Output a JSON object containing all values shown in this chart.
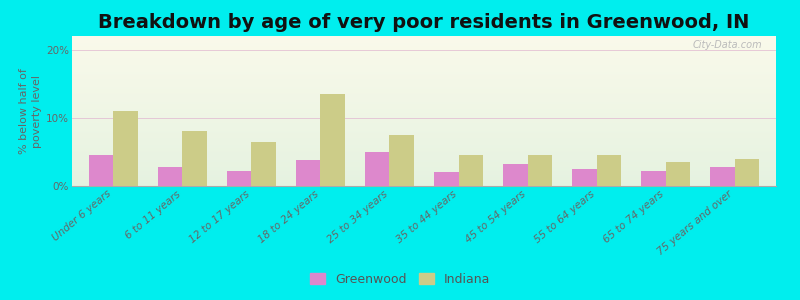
{
  "title": "Breakdown by age of very poor residents in Greenwood, IN",
  "ylabel": "% below half of\npoverty level",
  "categories": [
    "Under 6 years",
    "6 to 11 years",
    "12 to 17 years",
    "18 to 24 years",
    "25 to 34 years",
    "35 to 44 years",
    "45 to 54 years",
    "55 to 64 years",
    "65 to 74 years",
    "75 years and over"
  ],
  "greenwood_values": [
    4.5,
    2.8,
    2.2,
    3.8,
    5.0,
    2.0,
    3.2,
    2.5,
    2.2,
    2.8
  ],
  "indiana_values": [
    11.0,
    8.0,
    6.5,
    13.5,
    7.5,
    4.5,
    4.5,
    4.5,
    3.5,
    4.0
  ],
  "greenwood_color": "#dd88cc",
  "indiana_color": "#cccc88",
  "background_color": "#00eeee",
  "ylim": [
    0,
    22
  ],
  "yticks": [
    0,
    10,
    20
  ],
  "ytick_labels": [
    "0%",
    "10%",
    "20%"
  ],
  "bar_width": 0.35,
  "title_fontsize": 14,
  "axis_label_fontsize": 8,
  "tick_fontsize": 7.5,
  "legend_labels": [
    "Greenwood",
    "Indiana"
  ],
  "watermark": "City-Data.com"
}
